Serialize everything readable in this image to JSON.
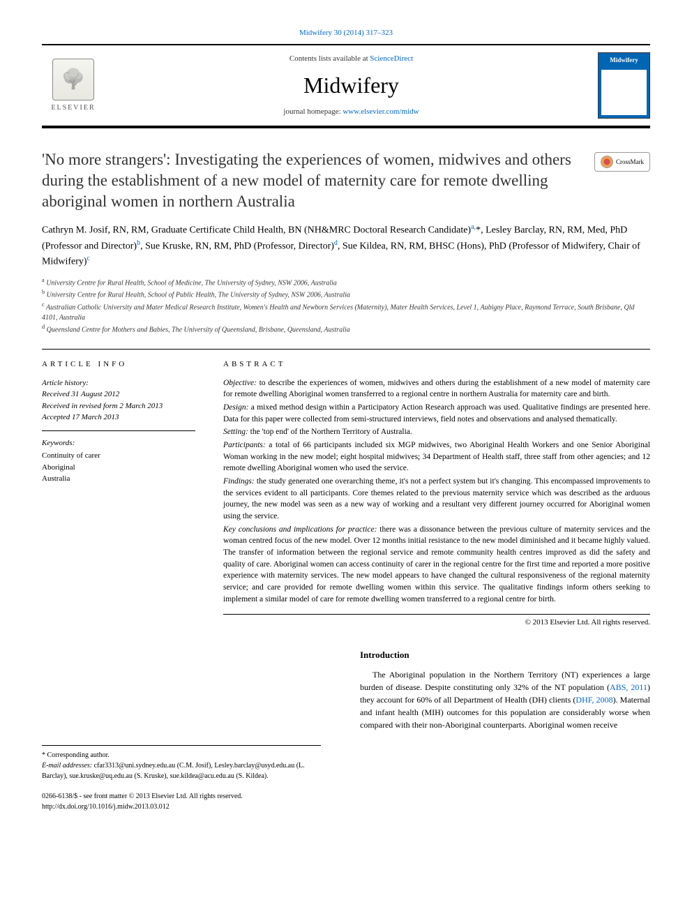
{
  "journal": {
    "citation": "Midwifery 30 (2014) 317–323",
    "contents_prefix": "Contents lists available at ",
    "contents_link_text": "ScienceDirect",
    "title": "Midwifery",
    "homepage_prefix": "journal homepage: ",
    "homepage_link": "www.elsevier.com/midw",
    "publisher_name": "ELSEVIER",
    "cover_title": "Midwifery"
  },
  "crossmark_label": "CrossMark",
  "article": {
    "title": "'No more strangers': Investigating the experiences of women, midwives and others during the establishment of a new model of maternity care for remote dwelling aboriginal women in northern Australia",
    "authors_html": "Cathryn M. Josif, RN, RM, Graduate Certificate Child Health, BN (NH&MRC Doctoral Research Candidate)<sup>a,</sup>*, Lesley Barclay, RN, RM, Med, PhD (Professor and Director)<sup>b</sup>, Sue Kruske, RN, RM, PhD (Professor, Director)<sup>d</sup>, Sue Kildea, RN, RM, BHSC (Hons), PhD (Professor of Midwifery, Chair of Midwifery)<sup>c</sup>",
    "affiliations": [
      {
        "marker": "a",
        "text": "University Centre for Rural Health, School of Medicine, The University of Sydney, NSW 2006, Australia"
      },
      {
        "marker": "b",
        "text": "University Centre for Rural Health, School of Public Health, The University of Sydney, NSW 2006, Australia"
      },
      {
        "marker": "c",
        "text": "Australian Catholic University and Mater Medical Research Institute, Women's Health and Newborn Services (Maternity), Mater Health Services, Level 1, Aubigny Place, Raymond Terrace, South Brisbane, Qld 4101, Australia"
      },
      {
        "marker": "d",
        "text": "Queensland Centre for Mothers and Babies, The University of Queensland, Brisbane, Queensland, Australia"
      }
    ]
  },
  "article_info": {
    "heading": "ARTICLE INFO",
    "history_label": "Article history:",
    "received": "Received 31 August 2012",
    "revised": "Received in revised form 2 March 2013",
    "accepted": "Accepted 17 March 2013",
    "keywords_label": "Keywords:",
    "keywords": [
      "Continuity of carer",
      "Aboriginal",
      "Australia"
    ]
  },
  "abstract": {
    "heading": "ABSTRACT",
    "segments": [
      {
        "label": "Objective:",
        "text": " to describe the experiences of women, midwives and others during the establishment of a new model of maternity care for remote dwelling Aboriginal women transferred to a regional centre in northern Australia for maternity care and birth."
      },
      {
        "label": "Design:",
        "text": " a mixed method design within a Participatory Action Research approach was used. Qualitative findings are presented here. Data for this paper were collected from semi-structured interviews, field notes and observations and analysed thematically."
      },
      {
        "label": "Setting:",
        "text": " the 'top end' of the Northern Territory of Australia."
      },
      {
        "label": "Participants:",
        "text": " a total of 66 participants included six MGP midwives, two Aboriginal Health Workers and one Senior Aboriginal Woman working in the new model; eight hospital midwives; 34 Department of Health staff, three staff from other agencies; and 12 remote dwelling Aboriginal women who used the service."
      },
      {
        "label": "Findings:",
        "text": " the study generated one overarching theme, it's not a perfect system but it's changing. This encompassed improvements to the services evident to all participants. Core themes related to the previous maternity service which was described as the arduous journey, the new model was seen as a new way of working and a resultant very different journey occurred for Aboriginal women using the service."
      },
      {
        "label": "Key conclusions and implications for practice:",
        "text": " there was a dissonance between the previous culture of maternity services and the woman centred focus of the new model. Over 12 months initial resistance to the new model diminished and it became highly valued. The transfer of information between the regional service and remote community health centres improved as did the safety and quality of care. Aboriginal women can access continuity of carer in the regional centre for the first time and reported a more positive experience with maternity services. The new model appears to have changed the cultural responsiveness of the regional maternity service; and care provided for remote dwelling women within this service. The qualitative findings inform others seeking to implement a similar model of care for remote dwelling women transferred to a regional centre for birth."
      }
    ],
    "copyright": "© 2013 Elsevier Ltd. All rights reserved."
  },
  "intro": {
    "heading": "Introduction",
    "body_html": "The Aboriginal population in the Northern Territory (NT) experiences a large burden of disease. Despite constituting only 32% of the NT population (<a href='#'>ABS, 2011</a>) they account for 60% of all Department of Health (DH) clients (<a href='#'>DHF, 2008</a>). Maternal and infant health (MIH) outcomes for this population are considerably worse when compared with their non-Aboriginal counterparts. Aboriginal women receive"
  },
  "footer": {
    "corr_label": "* Corresponding author.",
    "email_label": "E-mail addresses:",
    "emails": " cfar3313@uni.sydney.edu.au (C.M. Josif), Lesley.barclay@usyd.edu.au (L. Barclay), sue.kruske@uq.edu.au (S. Kruske), sue.kildea@acu.edu.au (S. Kildea).",
    "issn_line": "0266-6138/$ - see front matter © 2013 Elsevier Ltd. All rights reserved.",
    "doi_line": "http://dx.doi.org/10.1016/j.midw.2013.03.012"
  },
  "colors": {
    "link": "#0066cc",
    "text": "#000000",
    "cover_bg": "#0066b3"
  }
}
